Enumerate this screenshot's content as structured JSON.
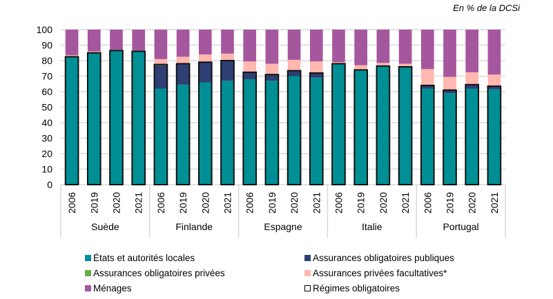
{
  "unit_note": "En % de la DCSi",
  "chart_data": {
    "type": "bar",
    "stacked": true,
    "title": "",
    "xlabel": "",
    "ylabel": "",
    "ylim": [
      0,
      100
    ],
    "yticks": [
      0,
      10,
      20,
      30,
      40,
      50,
      60,
      70,
      80,
      90,
      100
    ],
    "grid": true,
    "legend_position": "bottom",
    "groups": [
      {
        "name": "Suède",
        "years": [
          "2006",
          "2019",
          "2020",
          "2021"
        ]
      },
      {
        "name": "Finlande",
        "years": [
          "2006",
          "2019",
          "2020",
          "2021"
        ]
      },
      {
        "name": "Espagne",
        "years": [
          "2006",
          "2019",
          "2020",
          "2021"
        ]
      },
      {
        "name": "Italie",
        "years": [
          "2006",
          "2019",
          "2020",
          "2021"
        ]
      },
      {
        "name": "Portugal",
        "years": [
          "2006",
          "2019",
          "2020",
          "2021"
        ]
      }
    ],
    "series": [
      {
        "key": "etats",
        "name": "États et autorités locales",
        "color": "#008F94",
        "values": [
          82.5,
          85,
          86.5,
          86,
          62,
          64.5,
          66,
          67,
          68,
          67,
          70,
          69,
          78,
          74,
          76.5,
          76,
          62,
          59,
          62,
          61.5
        ]
      },
      {
        "key": "aop",
        "name": "Assurances obligatoires publiques",
        "color": "#2E3F73",
        "values": [
          0,
          0,
          0,
          0,
          15,
          13.5,
          13,
          13,
          4.5,
          4,
          3.5,
          3,
          0,
          0,
          0,
          0,
          2,
          2,
          2.5,
          2
        ]
      },
      {
        "key": "aopr",
        "name": "Assurances obligatoires privées",
        "color": "#6AAD45",
        "values": [
          0,
          0,
          0,
          0,
          0.5,
          0,
          0,
          0,
          0,
          0,
          0,
          0,
          0,
          0,
          0,
          0,
          0,
          0,
          0,
          0
        ]
      },
      {
        "key": "apf",
        "name": "Assurances privées facultatives*",
        "color": "#FFB7AF",
        "values": [
          1,
          1,
          0.5,
          0.5,
          3.5,
          4.5,
          5,
          4.5,
          7,
          7,
          7,
          7.5,
          1,
          3,
          2,
          2,
          10.5,
          8.5,
          8,
          7.5
        ]
      },
      {
        "key": "menages",
        "name": "Ménages",
        "color": "#A5579E",
        "values": [
          16.5,
          14,
          13,
          13.5,
          19,
          17.5,
          16,
          15.5,
          20.5,
          22,
          19.5,
          20.5,
          21,
          23,
          21.5,
          22,
          25.5,
          30.5,
          27.5,
          29
        ]
      }
    ],
    "outline_series": {
      "name": "Régimes obligatoires",
      "description": "outlined total of compulsory schemes"
    },
    "regimes_obligatoires_totals": [
      82.5,
      85,
      86.5,
      86,
      77.5,
      78,
      79,
      80,
      72.5,
      71,
      73.5,
      72,
      78,
      74,
      76.5,
      76,
      64,
      61,
      64.5,
      63.5
    ]
  },
  "legend": [
    {
      "label": "États et autorités locales",
      "color": "#008F94",
      "type": "fill"
    },
    {
      "label": "Assurances obligatoires publiques",
      "color": "#2E3F73",
      "type": "fill"
    },
    {
      "label": "Assurances obligatoires privées",
      "color": "#6AAD45",
      "type": "fill"
    },
    {
      "label": "Assurances privées facultatives*",
      "color": "#FFB7AF",
      "type": "fill"
    },
    {
      "label": "Ménages",
      "color": "#A5579E",
      "type": "fill"
    },
    {
      "label": "Régimes obligatoires",
      "color": "#000000",
      "type": "outline"
    }
  ]
}
